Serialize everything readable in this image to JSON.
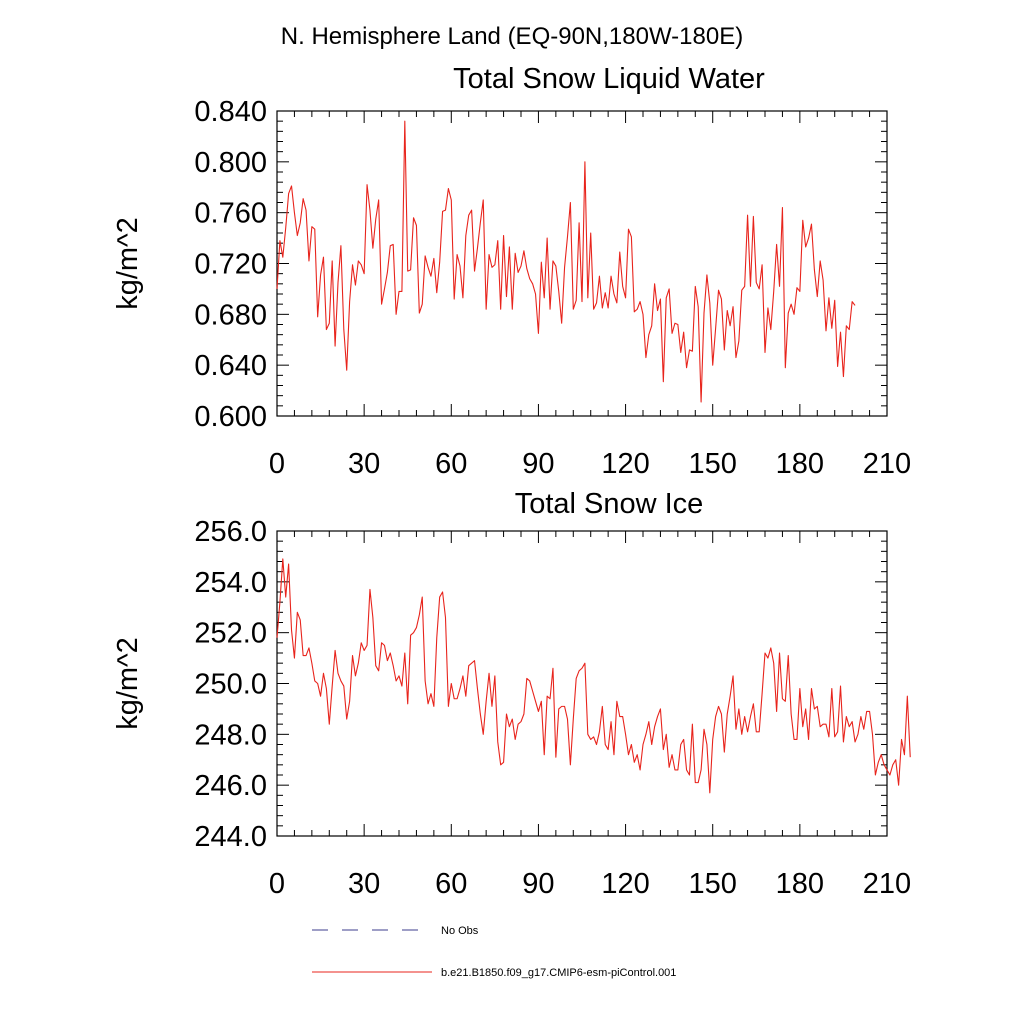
{
  "page": {
    "title": "N. Hemisphere Land (EQ-90N,180W-180E)"
  },
  "legend": {
    "items": [
      {
        "label": "No Obs",
        "color": "#3c3c8c",
        "style": "dashed"
      },
      {
        "label": "b.e21.B1850.f09_g17.CMIP6-esm-piControl.001",
        "color": "#e8241c",
        "style": "solid"
      }
    ]
  },
  "chart_data": [
    {
      "type": "line",
      "title": "Total Snow Liquid Water",
      "xlabel": "",
      "ylabel": "kg/m^2",
      "xlim": [
        0,
        210
      ],
      "ylim": [
        0.6,
        0.84
      ],
      "xticks": [
        "0",
        "30",
        "60",
        "90",
        "120",
        "150",
        "180",
        "210"
      ],
      "yticks": [
        "0.600",
        "0.640",
        "0.680",
        "0.720",
        "0.760",
        "0.800",
        "0.840"
      ],
      "series": [
        {
          "name": "b.e21.B1850.f09_g17.CMIP6-esm-piControl.001",
          "color": "#e8241c",
          "values": [
            0.7,
            0.738,
            0.725,
            0.748,
            0.775,
            0.781,
            0.76,
            0.742,
            0.752,
            0.771,
            0.762,
            0.722,
            0.749,
            0.747,
            0.678,
            0.711,
            0.725,
            0.668,
            0.673,
            0.722,
            0.655,
            0.705,
            0.734,
            0.668,
            0.636,
            0.69,
            0.719,
            0.703,
            0.722,
            0.719,
            0.712,
            0.782,
            0.762,
            0.732,
            0.755,
            0.77,
            0.688,
            0.7,
            0.713,
            0.734,
            0.735,
            0.68,
            0.698,
            0.698,
            0.832,
            0.714,
            0.715,
            0.756,
            0.75,
            0.681,
            0.688,
            0.726,
            0.717,
            0.71,
            0.724,
            0.697,
            0.721,
            0.761,
            0.762,
            0.779,
            0.77,
            0.692,
            0.727,
            0.718,
            0.693,
            0.742,
            0.758,
            0.762,
            0.714,
            0.732,
            0.752,
            0.77,
            0.684,
            0.727,
            0.717,
            0.719,
            0.738,
            0.684,
            0.742,
            0.694,
            0.733,
            0.684,
            0.728,
            0.713,
            0.718,
            0.73,
            0.716,
            0.708,
            0.704,
            0.696,
            0.665,
            0.721,
            0.693,
            0.74,
            0.684,
            0.722,
            0.718,
            0.698,
            0.673,
            0.717,
            0.741,
            0.768,
            0.684,
            0.691,
            0.752,
            0.69,
            0.8,
            0.693,
            0.744,
            0.684,
            0.689,
            0.71,
            0.685,
            0.697,
            0.685,
            0.71,
            0.696,
            0.689,
            0.729,
            0.702,
            0.693,
            0.747,
            0.741,
            0.682,
            0.684,
            0.69,
            0.68,
            0.646,
            0.664,
            0.671,
            0.704,
            0.683,
            0.692,
            0.627,
            0.693,
            0.7,
            0.665,
            0.673,
            0.672,
            0.65,
            0.666,
            0.638,
            0.652,
            0.651,
            0.702,
            0.686,
            0.611,
            0.681,
            0.711,
            0.689,
            0.64,
            0.669,
            0.699,
            0.692,
            0.652,
            0.683,
            0.671,
            0.686,
            0.646,
            0.659,
            0.699,
            0.702,
            0.758,
            0.702,
            0.757,
            0.705,
            0.7,
            0.719,
            0.65,
            0.685,
            0.668,
            0.698,
            0.735,
            0.702,
            0.764,
            0.638,
            0.681,
            0.688,
            0.68,
            0.701,
            0.698,
            0.754,
            0.733,
            0.74,
            0.751,
            0.715,
            0.694,
            0.722,
            0.707,
            0.667,
            0.693,
            0.669,
            0.691,
            0.639,
            0.666,
            0.631,
            0.671,
            0.668,
            0.69,
            0.687
          ]
        }
      ]
    },
    {
      "type": "line",
      "title": "Total Snow Ice",
      "xlabel": "",
      "ylabel": "kg/m^2",
      "xlim": [
        0,
        210
      ],
      "ylim": [
        244.0,
        256.0
      ],
      "xticks": [
        "0",
        "30",
        "60",
        "90",
        "120",
        "150",
        "180",
        "210"
      ],
      "yticks": [
        "244.0",
        "246.0",
        "248.0",
        "250.0",
        "252.0",
        "254.0",
        "256.0"
      ],
      "series": [
        {
          "name": "b.e21.B1850.f09_g17.CMIP6-esm-piControl.001",
          "color": "#e8241c",
          "values": [
            251.8,
            253.2,
            254.9,
            253.4,
            254.7,
            252.1,
            251.0,
            252.8,
            252.5,
            251.1,
            251.1,
            251.4,
            250.8,
            250.1,
            250.0,
            249.5,
            250.4,
            249.8,
            248.4,
            249.9,
            251.3,
            250.4,
            250.1,
            249.9,
            248.6,
            249.3,
            251.1,
            250.3,
            250.8,
            251.6,
            251.3,
            251.5,
            253.7,
            252.6,
            250.7,
            250.5,
            251.6,
            251.5,
            250.9,
            251.2,
            250.7,
            250.1,
            250.3,
            249.9,
            251.2,
            249.2,
            251.9,
            252.0,
            252.2,
            252.7,
            253.4,
            250.1,
            249.2,
            249.6,
            249.1,
            251.8,
            253.4,
            253.6,
            252.6,
            249.1,
            250.0,
            249.4,
            249.4,
            249.8,
            250.3,
            249.5,
            250.7,
            250.8,
            250.9,
            249.8,
            248.8,
            248.0,
            249.3,
            250.4,
            249.1,
            250.3,
            247.7,
            246.8,
            246.9,
            248.8,
            248.3,
            248.6,
            247.8,
            248.4,
            248.5,
            248.8,
            250.2,
            250.1,
            249.7,
            249.3,
            248.9,
            249.3,
            247.2,
            249.5,
            249.4,
            250.6,
            247.1,
            249.0,
            249.1,
            249.1,
            248.6,
            246.8,
            248.6,
            250.2,
            250.5,
            250.6,
            250.8,
            248.0,
            247.8,
            247.9,
            247.6,
            248.1,
            249.1,
            247.6,
            247.4,
            248.5,
            247.2,
            249.3,
            248.7,
            248.7,
            248.0,
            247.2,
            247.6,
            246.9,
            247.2,
            246.6,
            247.6,
            248.0,
            248.5,
            247.6,
            248.3,
            248.7,
            249.0,
            247.4,
            248.0,
            246.7,
            247.2,
            246.6,
            246.6,
            247.6,
            247.8,
            246.6,
            246.4,
            248.4,
            246.1,
            246.1,
            246.6,
            248.2,
            247.6,
            245.7,
            247.8,
            248.7,
            249.1,
            248.8,
            247.3,
            248.8,
            249.5,
            250.3,
            248.2,
            249.0,
            248.0,
            248.7,
            248.1,
            248.7,
            249.2,
            248.1,
            248.1,
            249.6,
            251.2,
            251.0,
            251.4,
            250.8,
            248.9,
            251.2,
            249.4,
            249.3,
            251.1,
            248.8,
            247.8,
            247.8,
            249.8,
            248.3,
            249.0,
            247.8,
            249.8,
            249.0,
            249.1,
            248.3,
            248.4,
            248.4,
            247.9,
            249.8,
            247.9,
            248.1,
            249.9,
            247.7,
            248.7,
            248.3,
            248.5,
            247.7,
            248.0,
            248.7,
            248.2,
            248.9,
            248.9,
            248.0,
            246.4,
            246.9,
            247.2,
            246.8,
            246.6,
            246.4,
            246.8,
            247.0,
            246.0,
            247.8,
            247.2,
            249.5,
            247.1
          ]
        }
      ]
    }
  ]
}
